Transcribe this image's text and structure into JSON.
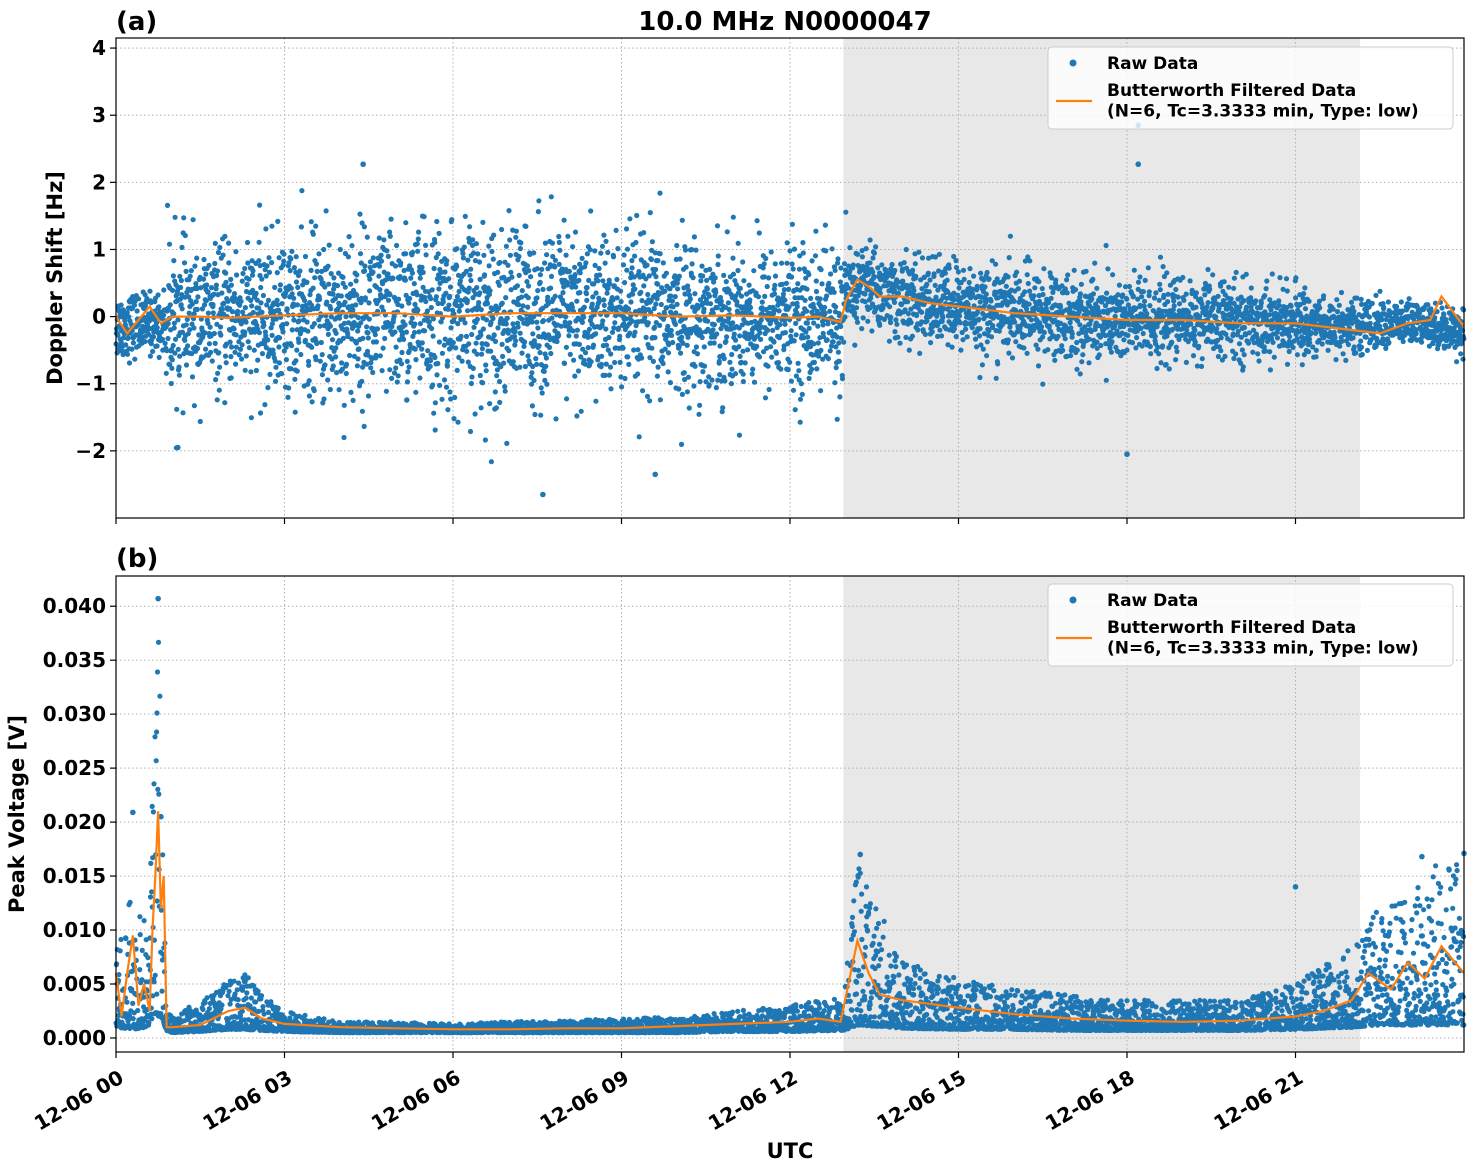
{
  "figure": {
    "title": "10.0 MHz N0000047",
    "xlabel": "UTC"
  },
  "chart_data": [
    {
      "type": "scatter",
      "panel_label": "(a)",
      "ylabel": "Doppler Shift [Hz]",
      "x_unit": "hours UTC on 12-06",
      "xlim": [
        0,
        24
      ],
      "ylim": [
        -3.0,
        4.15
      ],
      "xticks": [
        0,
        3,
        6,
        9,
        12,
        15,
        18,
        21
      ],
      "xtick_labels": [
        "12-06 00",
        "12-06 03",
        "12-06 06",
        "12-06 09",
        "12-06 12",
        "12-06 15",
        "12-06 18",
        "12-06 21"
      ],
      "yticks": [
        -2,
        -1,
        0,
        1,
        2,
        3,
        4
      ],
      "ytick_labels": [
        "−2",
        "−1",
        "0",
        "1",
        "2",
        "3",
        "4"
      ],
      "grid": true,
      "legend_position": "top-right",
      "shaded_region": {
        "x_start": 12.95,
        "x_end": 22.15,
        "color": "#e8e8e8"
      },
      "series": [
        {
          "name": "Raw Data",
          "kind": "scatter",
          "color": "#1f77b4",
          "envelope": {
            "x": [
              0,
              0.5,
              0.85,
              0.9,
              1.5,
              2.0,
              3.0,
              4.0,
              5.0,
              6.0,
              7.0,
              8.0,
              9.0,
              10.0,
              11.0,
              12.0,
              12.6,
              12.95,
              13.0,
              13.3,
              14.0,
              15.0,
              16.0,
              17.0,
              18.0,
              19.0,
              20.0,
              21.0,
              22.0,
              23.0,
              24.0
            ],
            "median": [
              -0.15,
              -0.1,
              -0.1,
              0.0,
              -0.05,
              0.0,
              0.0,
              0.0,
              0.05,
              0.0,
              0.05,
              0.05,
              0.0,
              0.0,
              0.0,
              0.0,
              0.0,
              -0.1,
              0.3,
              0.5,
              0.25,
              0.15,
              0.05,
              0.0,
              -0.05,
              -0.05,
              -0.05,
              -0.1,
              -0.15,
              -0.1,
              -0.2
            ],
            "typical_spread": [
              0.45,
              0.4,
              0.4,
              1.05,
              0.95,
              0.9,
              1.05,
              1.15,
              1.15,
              1.2,
              1.2,
              1.15,
              1.1,
              1.05,
              0.95,
              0.95,
              0.95,
              0.95,
              0.65,
              0.55,
              0.55,
              0.6,
              0.6,
              0.6,
              0.6,
              0.55,
              0.5,
              0.45,
              0.35,
              0.3,
              0.3
            ]
          },
          "notable_points": [
            {
              "x": 4.4,
              "y": 2.27
            },
            {
              "x": 7.6,
              "y": -2.65
            },
            {
              "x": 9.6,
              "y": -2.35
            },
            {
              "x": 18.2,
              "y": 2.85
            },
            {
              "x": 18.2,
              "y": 2.27
            },
            {
              "x": 18.0,
              "y": -2.05
            },
            {
              "x": 1.1,
              "y": -1.95
            }
          ]
        },
        {
          "name": "Butterworth Filtered Data\n(N=6, Tc=3.3333 min, Type: low)",
          "kind": "line",
          "color": "#ff7f0e",
          "x": [
            0,
            0.2,
            0.4,
            0.6,
            0.8,
            1.0,
            1.5,
            2.0,
            2.5,
            3.0,
            4.0,
            5.0,
            6.0,
            7.0,
            8.0,
            9.0,
            10.0,
            11.0,
            12.0,
            12.5,
            12.9,
            13.0,
            13.2,
            13.4,
            13.6,
            14.0,
            14.5,
            15.0,
            16.0,
            17.0,
            18.0,
            19.0,
            20.0,
            21.0,
            22.0,
            22.5,
            23.0,
            23.4,
            23.6,
            24.0
          ],
          "y": [
            0.0,
            -0.25,
            -0.05,
            0.15,
            -0.1,
            0.0,
            0.0,
            -0.02,
            0.0,
            0.02,
            0.05,
            0.05,
            0.0,
            0.05,
            0.05,
            0.05,
            0.0,
            0.02,
            -0.02,
            0.0,
            -0.08,
            0.25,
            0.55,
            0.45,
            0.3,
            0.3,
            0.2,
            0.15,
            0.05,
            0.0,
            -0.05,
            -0.05,
            -0.1,
            -0.1,
            -0.2,
            -0.25,
            -0.1,
            -0.05,
            0.3,
            -0.15
          ]
        }
      ]
    },
    {
      "type": "scatter",
      "panel_label": "(b)",
      "ylabel": "Peak Voltage [V]",
      "x_unit": "hours UTC on 12-06",
      "xlim": [
        0,
        24
      ],
      "ylim": [
        -0.0013,
        0.0428
      ],
      "xticks": [
        0,
        3,
        6,
        9,
        12,
        15,
        18,
        21
      ],
      "xtick_labels": [
        "12-06 00",
        "12-06 03",
        "12-06 06",
        "12-06 09",
        "12-06 12",
        "12-06 15",
        "12-06 18",
        "12-06 21"
      ],
      "yticks": [
        0.0,
        0.005,
        0.01,
        0.015,
        0.02,
        0.025,
        0.03,
        0.035,
        0.04
      ],
      "ytick_labels": [
        "0.000",
        "0.005",
        "0.010",
        "0.015",
        "0.020",
        "0.025",
        "0.030",
        "0.035",
        "0.040"
      ],
      "grid": true,
      "legend_position": "top-right",
      "shaded_region": {
        "x_start": 12.95,
        "x_end": 22.15,
        "color": "#e8e8e8"
      },
      "series": [
        {
          "name": "Raw Data",
          "kind": "scatter",
          "color": "#1f77b4",
          "envelope": {
            "x": [
              0,
              0.3,
              0.55,
              0.7,
              0.75,
              0.8,
              0.9,
              1.0,
              1.5,
              2.0,
              2.3,
              2.6,
              3.0,
              4.0,
              5.0,
              6.0,
              7.0,
              8.0,
              9.0,
              10.0,
              11.0,
              12.0,
              12.8,
              12.95,
              13.2,
              13.5,
              14.0,
              15.0,
              16.0,
              17.0,
              18.0,
              19.0,
              20.0,
              21.0,
              22.0,
              22.5,
              23.0,
              23.5,
              24.0
            ],
            "low": [
              0.001,
              0.0008,
              0.001,
              0.002,
              0.002,
              0.002,
              0.0007,
              0.0005,
              0.0006,
              0.0008,
              0.0008,
              0.0007,
              0.0006,
              0.0005,
              0.0005,
              0.0005,
              0.0005,
              0.0005,
              0.0005,
              0.0005,
              0.0006,
              0.0006,
              0.0007,
              0.0007,
              0.0012,
              0.0011,
              0.0009,
              0.0008,
              0.0008,
              0.0007,
              0.0007,
              0.0007,
              0.0007,
              0.0008,
              0.001,
              0.0012,
              0.0012,
              0.0012,
              0.0012
            ],
            "high": [
              0.008,
              0.014,
              0.011,
              0.03,
              0.041,
              0.03,
              0.003,
              0.002,
              0.0035,
              0.0055,
              0.006,
              0.004,
              0.0025,
              0.0015,
              0.0015,
              0.0013,
              0.0015,
              0.0016,
              0.0018,
              0.002,
              0.0025,
              0.003,
              0.004,
              0.003,
              0.017,
              0.013,
              0.0075,
              0.0055,
              0.0045,
              0.004,
              0.0035,
              0.0035,
              0.0035,
              0.005,
              0.009,
              0.012,
              0.013,
              0.016,
              0.017
            ]
          },
          "notable_points": [
            {
              "x": 0.75,
              "y": 0.0407
            },
            {
              "x": 0.8,
              "y": 0.0205
            },
            {
              "x": 0.3,
              "y": 0.0209
            },
            {
              "x": 13.25,
              "y": 0.017
            },
            {
              "x": 21.0,
              "y": 0.014
            },
            {
              "x": 23.25,
              "y": 0.0168
            },
            {
              "x": 24.0,
              "y": 0.0171
            }
          ]
        },
        {
          "name": "Butterworth Filtered Data\n(N=6, Tc=3.3333 min, Type: low)",
          "kind": "line",
          "color": "#ff7f0e",
          "x": [
            0,
            0.1,
            0.2,
            0.3,
            0.4,
            0.5,
            0.6,
            0.65,
            0.7,
            0.75,
            0.8,
            0.85,
            0.9,
            1.0,
            1.5,
            2.0,
            2.3,
            2.6,
            3.0,
            4.0,
            5.0,
            6.0,
            7.0,
            8.0,
            9.0,
            10.0,
            11.0,
            12.0,
            12.5,
            12.9,
            13.0,
            13.2,
            13.4,
            13.6,
            14.0,
            15.0,
            16.0,
            17.0,
            18.0,
            19.0,
            20.0,
            21.0,
            21.5,
            22.0,
            22.3,
            22.7,
            23.0,
            23.3,
            23.6,
            24.0
          ],
          "y": [
            0.006,
            0.002,
            0.006,
            0.0095,
            0.003,
            0.005,
            0.0025,
            0.01,
            0.015,
            0.021,
            0.012,
            0.015,
            0.001,
            0.001,
            0.0012,
            0.0025,
            0.0028,
            0.0018,
            0.0013,
            0.001,
            0.0009,
            0.0008,
            0.0008,
            0.0009,
            0.0009,
            0.0011,
            0.0013,
            0.0015,
            0.0018,
            0.0015,
            0.004,
            0.009,
            0.006,
            0.004,
            0.0035,
            0.0028,
            0.0022,
            0.0018,
            0.0016,
            0.0015,
            0.0016,
            0.002,
            0.0025,
            0.0035,
            0.006,
            0.0045,
            0.007,
            0.0055,
            0.0085,
            0.006
          ]
        }
      ]
    }
  ]
}
